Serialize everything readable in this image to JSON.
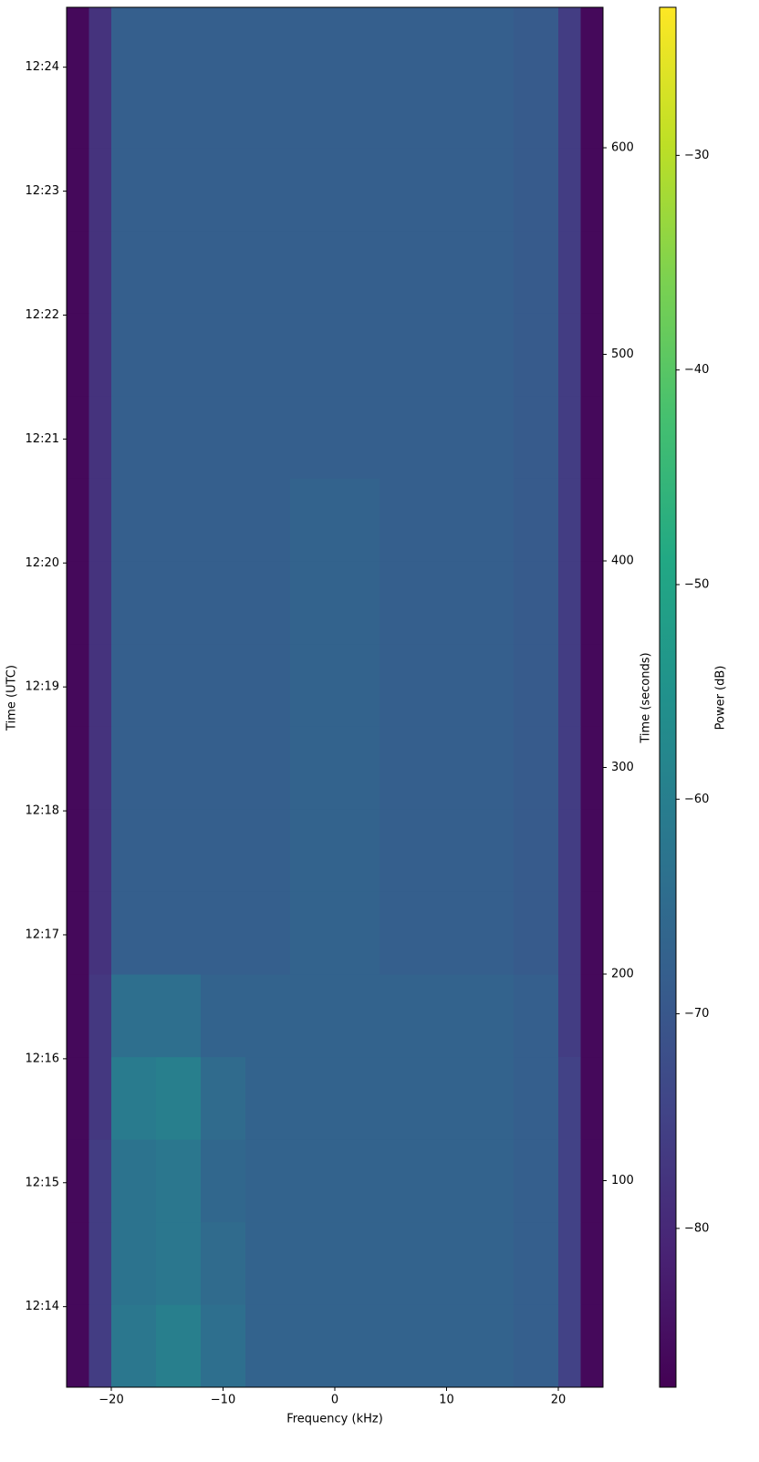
{
  "chart_data": {
    "type": "spectrogram",
    "x_label": "Frequency (kHz)",
    "y_label": "Time (UTC)",
    "y2_label": "Time (seconds)",
    "colorbar_label": "Power (dB)",
    "colormap": "viridis",
    "xlim": [
      -24,
      24
    ],
    "xticks": [
      {
        "value": -20,
        "label": "−20"
      },
      {
        "value": -10,
        "label": "−10"
      },
      0,
      10,
      20
    ],
    "ylim": [
      0,
      668
    ],
    "yticks": [
      {
        "value": 39,
        "label": "12:14"
      },
      {
        "value": 99,
        "label": "12:15"
      },
      {
        "value": 159,
        "label": "12:16"
      },
      {
        "value": 219,
        "label": "12:17"
      },
      {
        "value": 279,
        "label": "12:18"
      },
      {
        "value": 339,
        "label": "12:19"
      },
      {
        "value": 399,
        "label": "12:20"
      },
      {
        "value": 459,
        "label": "12:21"
      },
      {
        "value": 519,
        "label": "12:22"
      },
      {
        "value": 579,
        "label": "12:23"
      },
      {
        "value": 639,
        "label": "12:24"
      }
    ],
    "y2lim": [
      0,
      668
    ],
    "y2ticks": [
      100,
      200,
      300,
      400,
      500,
      600
    ],
    "clim": [
      -87.4,
      -23.1
    ],
    "cticks": [
      {
        "value": -30,
        "label": "−30"
      },
      {
        "value": -40,
        "label": "−40"
      },
      {
        "value": -50,
        "label": "−50"
      },
      {
        "value": -60,
        "label": "−60"
      },
      {
        "value": -70,
        "label": "−70"
      },
      {
        "value": -80,
        "label": "−80"
      }
    ],
    "x_edges": [
      -24,
      -22,
      -20,
      -16,
      -12,
      -8,
      -4,
      0,
      4,
      8,
      12,
      16,
      20,
      22,
      24
    ],
    "y_edges": [
      0,
      40,
      80,
      120,
      160,
      200,
      240,
      280,
      320,
      360,
      400,
      440,
      480,
      520,
      560,
      600,
      668
    ],
    "values": [
      [
        -86,
        -76,
        -62,
        -60,
        -64,
        -67,
        -67,
        -67,
        -67,
        -67,
        -67,
        -68,
        -75,
        -86
      ],
      [
        -86,
        -76,
        -63,
        -62,
        -65,
        -67,
        -67,
        -67,
        -67,
        -67,
        -67,
        -68,
        -75,
        -86
      ],
      [
        -86,
        -76,
        -63,
        -62,
        -66,
        -67,
        -67,
        -67,
        -67,
        -67,
        -67,
        -68,
        -75,
        -86
      ],
      [
        -86,
        -77,
        -61,
        -60,
        -65,
        -67,
        -67,
        -67,
        -67,
        -67,
        -67,
        -68,
        -75,
        -86
      ],
      [
        -86,
        -77,
        -64,
        -64,
        -67,
        -67,
        -67,
        -67,
        -67,
        -67,
        -67,
        -68,
        -76,
        -86
      ],
      [
        -86,
        -78,
        -68,
        -68,
        -68,
        -68,
        -67,
        -67,
        -68,
        -68,
        -68,
        -69,
        -76,
        -86
      ],
      [
        -86,
        -78,
        -68,
        -68,
        -68,
        -68,
        -67,
        -67,
        -68,
        -68,
        -68,
        -69,
        -76,
        -86
      ],
      [
        -86,
        -78,
        -68,
        -68,
        -68,
        -68,
        -67,
        -67,
        -68,
        -68,
        -68,
        -69,
        -76,
        -86
      ],
      [
        -86,
        -78,
        -68,
        -68,
        -68,
        -68,
        -67,
        -67,
        -68,
        -68,
        -68,
        -69,
        -76,
        -86
      ],
      [
        -86,
        -78,
        -68,
        -68,
        -68,
        -68,
        -67,
        -67,
        -68,
        -68,
        -68,
        -69,
        -76,
        -86
      ],
      [
        -86,
        -78,
        -68,
        -68,
        -68,
        -68,
        -67,
        -67,
        -68,
        -68,
        -68,
        -69,
        -76,
        -86
      ],
      [
        -86,
        -78,
        -68,
        -68,
        -68,
        -68,
        -68,
        -68,
        -68,
        -68,
        -68,
        -69,
        -76,
        -86
      ],
      [
        -86,
        -78,
        -68,
        -68,
        -68,
        -68,
        -68,
        -68,
        -68,
        -68,
        -68,
        -69,
        -76,
        -86
      ],
      [
        -86,
        -78,
        -68,
        -68,
        -68,
        -68,
        -68,
        -68,
        -68,
        -68,
        -68,
        -69,
        -76,
        -86
      ],
      [
        -86,
        -78,
        -68,
        -68,
        -68,
        -68,
        -68,
        -68,
        -68,
        -68,
        -68,
        -69,
        -76,
        -86
      ],
      [
        -86,
        -78,
        -68,
        -68,
        -68,
        -68,
        -68,
        -68,
        -68,
        -68,
        -68,
        -69,
        -76,
        -86
      ]
    ]
  }
}
